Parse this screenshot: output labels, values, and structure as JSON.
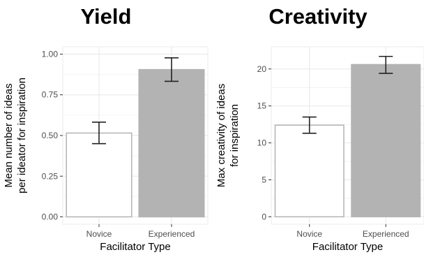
{
  "chart_data": [
    {
      "type": "bar",
      "title": "Yield",
      "xlabel": "Facilitator Type",
      "ylabel": [
        "Mean number of ideas",
        "per ideator for inspiration"
      ],
      "categories": [
        "Novice",
        "Experienced"
      ],
      "values": [
        0.515,
        0.905
      ],
      "error_low": [
        0.45,
        0.833
      ],
      "error_high": [
        0.582,
        0.977
      ],
      "bar_colors": [
        "#ffffff",
        "#b3b3b3"
      ],
      "bar_stroke": [
        "#b3b3b3",
        "#b3b3b3"
      ],
      "ylim": [
        -0.045,
        1.045
      ],
      "yticks": [
        0,
        0.25,
        0.5,
        0.75,
        1.0
      ],
      "ytick_labels": [
        "0.00",
        "0.25",
        "0.50",
        "0.75",
        "1.00"
      ],
      "grid": true,
      "panel_background": "#ffffff",
      "grid_color": "#ebebeb"
    },
    {
      "type": "bar",
      "title": "Creativity",
      "xlabel": "Facilitator Type",
      "ylabel": [
        "Max creativity of ideas",
        "for inspiration"
      ],
      "categories": [
        "Novice",
        "Experienced"
      ],
      "values": [
        12.4,
        20.6
      ],
      "error_low": [
        11.3,
        19.4
      ],
      "error_high": [
        13.5,
        21.7
      ],
      "bar_colors": [
        "#ffffff",
        "#b3b3b3"
      ],
      "bar_stroke": [
        "#b3b3b3",
        "#b3b3b3"
      ],
      "ylim": [
        -1.0,
        23.0
      ],
      "yticks": [
        0,
        5,
        10,
        15,
        20
      ],
      "ytick_labels": [
        "0",
        "5",
        "10",
        "15",
        "20"
      ],
      "grid": true,
      "panel_background": "#ffffff",
      "grid_color": "#ebebeb"
    }
  ]
}
